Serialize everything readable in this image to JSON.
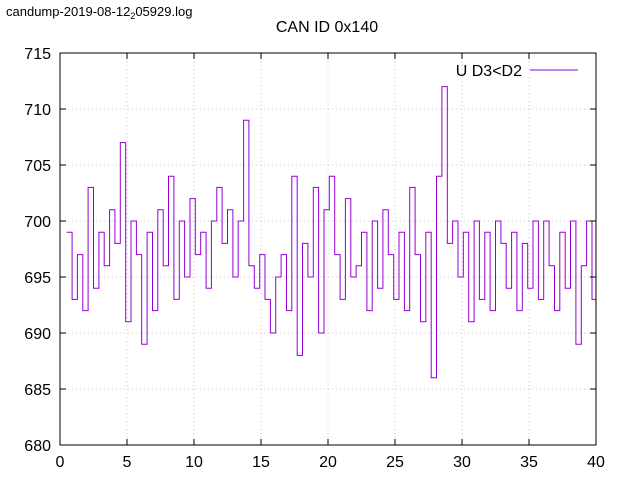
{
  "file_label": {
    "prefix": "candump-2019-08-12",
    "subscript": "2",
    "suffix": "05929.log"
  },
  "chart_data": {
    "type": "line",
    "title": "CAN ID 0x140",
    "xlabel": "",
    "ylabel": "",
    "xlim": [
      0,
      40
    ],
    "ylim": [
      680,
      715
    ],
    "x_ticks": [
      0,
      5,
      10,
      15,
      20,
      25,
      30,
      35,
      40
    ],
    "y_ticks": [
      680,
      685,
      690,
      695,
      700,
      705,
      710,
      715
    ],
    "grid": true,
    "legend_position": "top-right",
    "colors": {
      "series": "#9400d3",
      "axis": "#000000",
      "grid": "#c8c8c8"
    },
    "series": [
      {
        "name": "U D3<D2",
        "x": [
          0.5,
          0.9,
          1.3,
          1.7,
          2.1,
          2.5,
          2.9,
          3.3,
          3.7,
          4.1,
          4.5,
          4.9,
          5.3,
          5.7,
          6.1,
          6.5,
          6.9,
          7.3,
          7.7,
          8.1,
          8.5,
          8.9,
          9.3,
          9.7,
          10.1,
          10.5,
          10.9,
          11.3,
          11.7,
          12.1,
          12.5,
          12.9,
          13.3,
          13.7,
          14.1,
          14.5,
          14.9,
          15.3,
          15.7,
          16.1,
          16.5,
          16.9,
          17.3,
          17.7,
          18.1,
          18.5,
          18.9,
          19.3,
          19.7,
          20.1,
          20.5,
          20.9,
          21.3,
          21.7,
          22.1,
          22.5,
          22.9,
          23.3,
          23.7,
          24.1,
          24.5,
          24.9,
          25.3,
          25.7,
          26.1,
          26.5,
          26.9,
          27.3,
          27.7,
          28.1,
          28.5,
          28.9,
          29.3,
          29.7,
          30.1,
          30.5,
          30.9,
          31.3,
          31.7,
          32.1,
          32.5,
          32.9,
          33.3,
          33.7,
          34.1,
          34.5,
          34.9,
          35.3,
          35.7,
          36.1,
          36.5,
          36.9,
          37.3,
          37.7,
          38.1,
          38.5,
          38.9,
          39.3,
          39.7,
          40.0
        ],
        "y": [
          699,
          693,
          697,
          692,
          703,
          694,
          699,
          696,
          701,
          698,
          707,
          691,
          700,
          697,
          689,
          699,
          692,
          701,
          696,
          704,
          693,
          700,
          695,
          702,
          697,
          699,
          694,
          700,
          703,
          698,
          701,
          695,
          700,
          709,
          696,
          694,
          697,
          693,
          690,
          695,
          697,
          692,
          704,
          688,
          698,
          695,
          703,
          690,
          701,
          704,
          697,
          693,
          702,
          695,
          696,
          699,
          692,
          700,
          694,
          701,
          697,
          693,
          699,
          692,
          703,
          697,
          691,
          699,
          686,
          704,
          712,
          698,
          700,
          695,
          699,
          691,
          700,
          693,
          699,
          692,
          700,
          698,
          694,
          699,
          692,
          698,
          694,
          700,
          693,
          700,
          696,
          692,
          699,
          694,
          700,
          689,
          696,
          700,
          693,
          688
        ]
      }
    ]
  }
}
